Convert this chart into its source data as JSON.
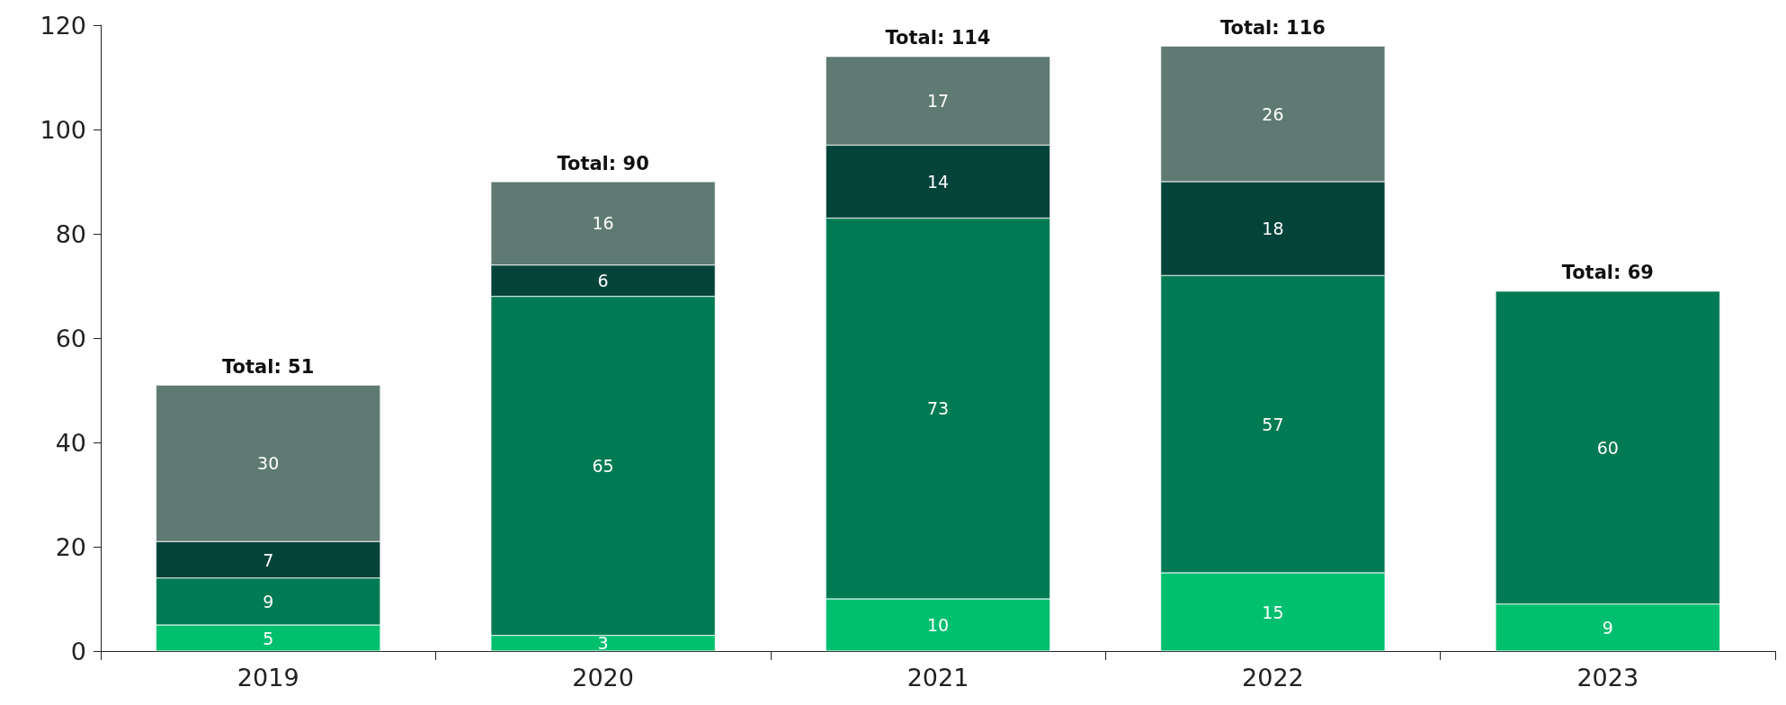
{
  "chart_data": {
    "type": "bar",
    "stacked": true,
    "categories": [
      "2019",
      "2020",
      "2021",
      "2022",
      "2023"
    ],
    "series": [
      {
        "color": "#00bf6f",
        "values": [
          5,
          3,
          10,
          15,
          9
        ]
      },
      {
        "color": "#007a53",
        "values": [
          9,
          65,
          73,
          57,
          60
        ]
      },
      {
        "color": "#04433a",
        "values": [
          7,
          6,
          14,
          18,
          null
        ]
      },
      {
        "color": "#5e7a72",
        "values": [
          30,
          16,
          17,
          26,
          null
        ]
      }
    ],
    "ylim": [
      0,
      120
    ],
    "yticks": [
      0,
      20,
      40,
      60,
      80,
      100,
      120
    ],
    "grid": false,
    "legend": false,
    "data_labels": true,
    "totals": [
      "Total: 51",
      "Total: 90",
      "Total: 114",
      "Total: 116",
      "Total: 69"
    ]
  }
}
